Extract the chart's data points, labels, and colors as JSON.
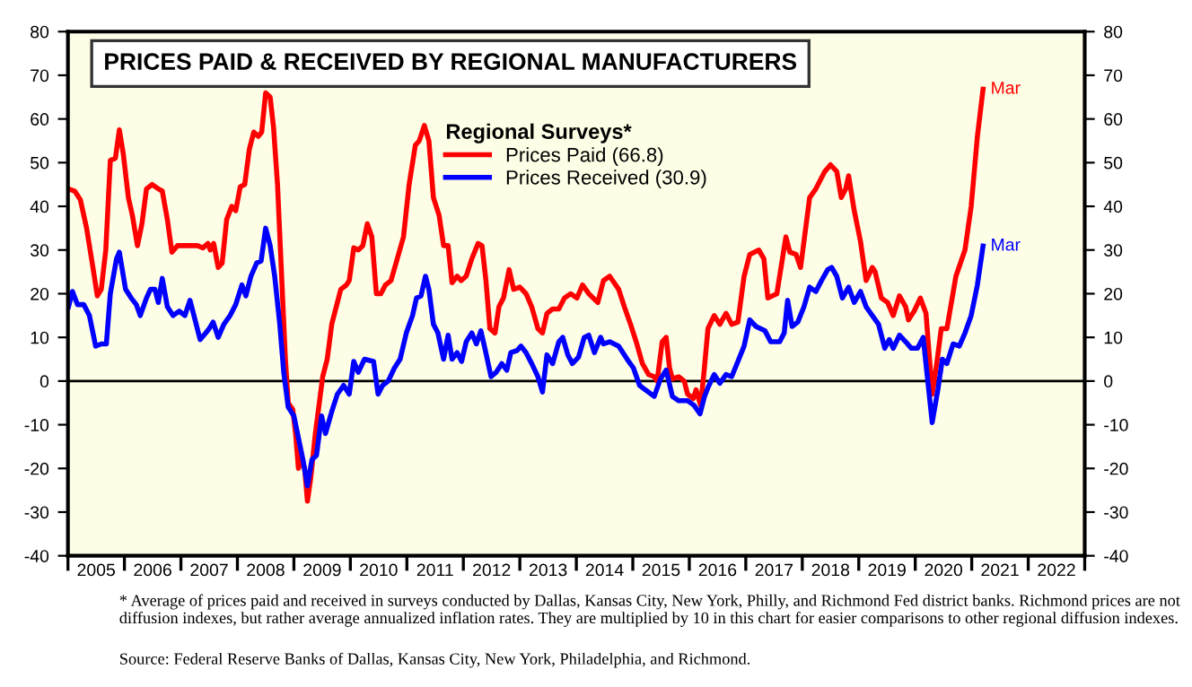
{
  "chart_data": {
    "type": "line",
    "title": "PRICES PAID & RECEIVED BY REGIONAL MANUFACTURERS",
    "legend_title": "Regional Surveys*",
    "legend": "top",
    "grid": false,
    "marker": "none",
    "line_style": "solid",
    "xlim": [
      2005,
      2023
    ],
    "ylim": [
      -40,
      80
    ],
    "y2lim": [
      -40,
      80
    ],
    "xticks": [
      {
        "value": 2005,
        "label": null
      },
      {
        "value": 2005.5,
        "label": "2005"
      },
      {
        "value": 2006,
        "label": null
      },
      {
        "value": 2006.5,
        "label": "2006"
      },
      {
        "value": 2007,
        "label": null
      },
      {
        "value": 2007.5,
        "label": "2007"
      },
      {
        "value": 2008,
        "label": null
      },
      {
        "value": 2008.5,
        "label": "2008"
      },
      {
        "value": 2009,
        "label": null
      },
      {
        "value": 2009.5,
        "label": "2009"
      },
      {
        "value": 2010,
        "label": null
      },
      {
        "value": 2010.5,
        "label": "2010"
      },
      {
        "value": 2011,
        "label": null
      },
      {
        "value": 2011.5,
        "label": "2011"
      },
      {
        "value": 2012,
        "label": null
      },
      {
        "value": 2012.5,
        "label": "2012"
      },
      {
        "value": 2013,
        "label": null
      },
      {
        "value": 2013.5,
        "label": "2013"
      },
      {
        "value": 2014,
        "label": null
      },
      {
        "value": 2014.5,
        "label": "2014"
      },
      {
        "value": 2015,
        "label": null
      },
      {
        "value": 2015.5,
        "label": "2015"
      },
      {
        "value": 2016,
        "label": null
      },
      {
        "value": 2016.5,
        "label": "2016"
      },
      {
        "value": 2017,
        "label": null
      },
      {
        "value": 2017.5,
        "label": "2017"
      },
      {
        "value": 2018,
        "label": null
      },
      {
        "value": 2018.5,
        "label": "2018"
      },
      {
        "value": 2019,
        "label": null
      },
      {
        "value": 2019.5,
        "label": "2019"
      },
      {
        "value": 2020,
        "label": null
      },
      {
        "value": 2020.5,
        "label": "2020"
      },
      {
        "value": 2021,
        "label": null
      },
      {
        "value": 2021.5,
        "label": "2021"
      },
      {
        "value": 2022,
        "label": null
      },
      {
        "value": 2022.5,
        "label": "2022"
      },
      {
        "value": 2023,
        "label": null
      }
    ],
    "yticks": [
      -40,
      -30,
      -20,
      -10,
      0,
      10,
      20,
      30,
      40,
      50,
      60,
      70,
      80
    ],
    "y2ticks": [
      -40,
      -30,
      -20,
      -10,
      0,
      10,
      20,
      30,
      40,
      50,
      60,
      70,
      80
    ],
    "ref_lines": [
      {
        "axis": "y",
        "value": 0,
        "color": "#000000"
      }
    ],
    "series": [
      {
        "name": "Prices Paid (66.8)",
        "color": "#ff0000",
        "x": [
          2005.01,
          2005.12,
          2005.22,
          2005.33,
          2005.43,
          2005.52,
          2005.59,
          2005.67,
          2005.75,
          2005.84,
          2005.91,
          2005.98,
          2006.07,
          2006.14,
          2006.23,
          2006.31,
          2006.39,
          2006.49,
          2006.6,
          2006.67,
          2006.76,
          2006.84,
          2006.94,
          2007.07,
          2007.29,
          2007.39,
          2007.48,
          2007.52,
          2007.58,
          2007.66,
          2007.73,
          2007.81,
          2007.9,
          2007.97,
          2008.05,
          2008.13,
          2008.21,
          2008.29,
          2008.37,
          2008.43,
          2008.5,
          2008.58,
          2008.64,
          2008.71,
          2008.79,
          2008.85,
          2008.9,
          2008.98,
          2009.03,
          2009.08,
          2009.14,
          2009.19,
          2009.24,
          2009.3,
          2009.38,
          2009.47,
          2009.51,
          2009.59,
          2009.67,
          2009.77,
          2009.83,
          2009.93,
          2009.98,
          2010.06,
          2010.14,
          2010.22,
          2010.3,
          2010.38,
          2010.46,
          2010.54,
          2010.62,
          2010.72,
          2010.83,
          2010.94,
          2011.04,
          2011.15,
          2011.22,
          2011.31,
          2011.39,
          2011.47,
          2011.57,
          2011.65,
          2011.73,
          2011.8,
          2011.89,
          2011.96,
          2012.05,
          2012.15,
          2012.26,
          2012.33,
          2012.4,
          2012.47,
          2012.56,
          2012.63,
          2012.71,
          2012.81,
          2012.89,
          2013.0,
          2013.11,
          2013.21,
          2013.32,
          2013.4,
          2013.48,
          2013.58,
          2013.69,
          2013.79,
          2013.9,
          2014.01,
          2014.11,
          2014.22,
          2014.38,
          2014.48,
          2014.59,
          2014.75,
          2014.85,
          2014.96,
          2015.06,
          2015.17,
          2015.28,
          2015.38,
          2015.43,
          2015.52,
          2015.59,
          2015.65,
          2015.7,
          2015.81,
          2015.91,
          2015.97,
          2016.07,
          2016.12,
          2016.2,
          2016.26,
          2016.33,
          2016.44,
          2016.54,
          2016.65,
          2016.75,
          2016.86,
          2016.97,
          2017.07,
          2017.23,
          2017.32,
          2017.39,
          2017.55,
          2017.71,
          2017.78,
          2017.89,
          2017.97,
          2018.13,
          2018.24,
          2018.4,
          2018.5,
          2018.61,
          2018.69,
          2018.77,
          2018.82,
          2018.92,
          2019.03,
          2019.13,
          2019.24,
          2019.29,
          2019.4,
          2019.51,
          2019.61,
          2019.72,
          2019.83,
          2019.88,
          2019.98,
          2020.09,
          2020.19,
          2020.3,
          2020.38,
          2020.46,
          2020.56,
          2020.72,
          2020.88,
          2020.99,
          2021.1,
          2021.2
        ],
        "values": [
          44,
          43.5,
          41.5,
          35,
          27,
          19.5,
          21,
          30,
          50.5,
          51,
          57.5,
          52,
          42,
          38,
          31,
          36,
          44,
          45,
          44,
          43.5,
          37,
          29.5,
          31,
          31,
          31,
          30.5,
          31.5,
          30,
          31.5,
          26,
          27,
          37,
          40,
          39,
          44.5,
          45,
          53,
          57,
          56,
          57,
          66,
          65,
          58,
          45,
          22,
          5,
          -5,
          -6.5,
          -12,
          -20,
          -18,
          -20,
          -27.5,
          -22,
          -12,
          -3,
          1,
          5,
          13,
          18,
          21,
          22,
          23,
          30.5,
          30,
          31,
          36,
          33,
          20,
          20,
          22,
          23,
          28,
          33,
          45,
          54,
          55,
          58.5,
          55,
          42,
          38,
          31,
          31,
          22.5,
          24,
          23,
          24,
          28,
          31.5,
          31,
          23,
          12,
          11,
          17,
          19,
          25.5,
          21,
          21.5,
          20,
          17,
          12,
          11,
          15.5,
          16.5,
          16.5,
          19,
          20,
          19,
          22,
          20,
          18,
          23,
          24,
          21,
          17,
          13,
          9,
          4,
          1.5,
          1,
          0,
          9,
          10,
          3,
          0.5,
          1,
          0,
          -3,
          -4,
          -2,
          -5.5,
          2,
          12,
          15,
          13,
          15.5,
          13,
          13.5,
          24,
          29,
          30,
          28,
          19,
          20,
          33,
          29.5,
          29,
          26,
          42,
          44,
          48,
          49.5,
          48,
          42,
          44,
          47,
          39,
          32,
          23,
          26,
          25,
          19,
          18,
          15,
          19.5,
          17,
          14,
          16,
          19,
          15.5,
          -3,
          4,
          12,
          12,
          24,
          30,
          40,
          56,
          66.8
        ]
      },
      {
        "name": "Prices Received (30.9)",
        "color": "#0000ff",
        "x": [
          2005.01,
          2005.08,
          2005.17,
          2005.28,
          2005.38,
          2005.49,
          2005.59,
          2005.68,
          2005.75,
          2005.86,
          2005.91,
          2006.02,
          2006.12,
          2006.21,
          2006.28,
          2006.39,
          2006.46,
          2006.54,
          2006.6,
          2006.67,
          2006.76,
          2006.86,
          2006.97,
          2007.07,
          2007.16,
          2007.23,
          2007.34,
          2007.44,
          2007.5,
          2007.57,
          2007.66,
          2007.76,
          2007.87,
          2007.97,
          2008.08,
          2008.15,
          2008.24,
          2008.34,
          2008.42,
          2008.5,
          2008.58,
          2008.66,
          2008.75,
          2008.82,
          2008.9,
          2009.0,
          2009.08,
          2009.16,
          2009.24,
          2009.32,
          2009.4,
          2009.49,
          2009.56,
          2009.67,
          2009.77,
          2009.88,
          2009.98,
          2010.06,
          2010.14,
          2010.25,
          2010.41,
          2010.49,
          2010.57,
          2010.67,
          2010.78,
          2010.88,
          2010.99,
          2011.1,
          2011.17,
          2011.25,
          2011.33,
          2011.39,
          2011.47,
          2011.55,
          2011.65,
          2011.73,
          2011.8,
          2011.89,
          2011.97,
          2012.05,
          2012.15,
          2012.23,
          2012.31,
          2012.39,
          2012.49,
          2012.58,
          2012.68,
          2012.77,
          2012.84,
          2012.95,
          2013.02,
          2013.11,
          2013.21,
          2013.32,
          2013.4,
          2013.48,
          2013.58,
          2013.69,
          2013.76,
          2013.85,
          2013.93,
          2014.04,
          2014.14,
          2014.22,
          2014.32,
          2014.43,
          2014.48,
          2014.59,
          2014.75,
          2014.9,
          2015.01,
          2015.12,
          2015.22,
          2015.38,
          2015.49,
          2015.59,
          2015.7,
          2015.81,
          2015.97,
          2016.08,
          2016.19,
          2016.27,
          2016.33,
          2016.44,
          2016.54,
          2016.65,
          2016.75,
          2016.86,
          2016.97,
          2017.07,
          2017.18,
          2017.34,
          2017.44,
          2017.6,
          2017.68,
          2017.74,
          2017.82,
          2017.92,
          2018.03,
          2018.13,
          2018.24,
          2018.34,
          2018.45,
          2018.52,
          2018.61,
          2018.71,
          2018.82,
          2018.92,
          2019.03,
          2019.13,
          2019.24,
          2019.35,
          2019.46,
          2019.54,
          2019.61,
          2019.72,
          2019.83,
          2019.93,
          2020.04,
          2020.14,
          2020.3,
          2020.4,
          2020.48,
          2020.56,
          2020.67,
          2020.78,
          2020.88,
          2020.99,
          2021.1,
          2021.2
        ],
        "values": [
          17,
          20.5,
          17.5,
          17.5,
          15,
          8,
          8.5,
          8.5,
          20,
          28,
          29.5,
          21,
          19,
          17.5,
          15,
          19,
          21,
          21,
          18,
          23.5,
          17,
          15,
          16,
          15,
          18.5,
          15,
          9.5,
          11,
          12,
          13.5,
          10,
          13,
          15,
          17.5,
          22,
          19.5,
          24,
          27,
          27.5,
          35,
          31,
          24,
          13,
          2,
          -6,
          -8,
          -13,
          -18,
          -24,
          -18,
          -17,
          -8,
          -12,
          -7,
          -3,
          -1,
          -3,
          4.5,
          2,
          5,
          4.5,
          -3,
          -1,
          0,
          3,
          5,
          11,
          15,
          19,
          19.5,
          24,
          21,
          13,
          11,
          5,
          10.5,
          5,
          6.5,
          4.5,
          9,
          11,
          8.5,
          11.5,
          7,
          1,
          2,
          4,
          2.5,
          6.5,
          7,
          8,
          6.5,
          4,
          1,
          -2.5,
          6,
          4,
          9,
          10,
          6,
          4,
          5.5,
          10,
          10.5,
          6.5,
          10,
          8.5,
          9,
          8,
          5,
          3,
          -1,
          -2,
          -3.5,
          0.5,
          2.5,
          -3.5,
          -4.5,
          -4.5,
          -5.5,
          -7.5,
          -3.5,
          -1.5,
          1.5,
          -0.5,
          1.5,
          1,
          4.5,
          8,
          14,
          12.5,
          11.5,
          9,
          9,
          11,
          18.5,
          12.5,
          13.5,
          17,
          21.5,
          20.5,
          23,
          25.5,
          26,
          24,
          19,
          21.5,
          18,
          20.5,
          17,
          15,
          13,
          7.5,
          9.5,
          7.5,
          10.5,
          9,
          7.5,
          7.5,
          10,
          -9.5,
          -2,
          5,
          4,
          8.5,
          8,
          11,
          15,
          22,
          30.9
        ]
      }
    ],
    "annotations": [
      {
        "text": "Mar",
        "x": 2021.2,
        "y": 66.8
      },
      {
        "text": "Mar",
        "x": 2021.2,
        "y": 30.9
      },
      "* Average of prices paid and received in surveys conducted by Dallas, Kansas City, New York, Philly, and Richmond Fed district banks. Richmond prices are not diffusion indexes, but rather average annualized inflation rates. They are multiplied by 10 in this chart for easier comparisons to other regional diffusion indexes.",
      "Source: Federal Reserve Banks of Dallas, Kansas City, New York, Philadelphia, and Richmond."
    ]
  }
}
